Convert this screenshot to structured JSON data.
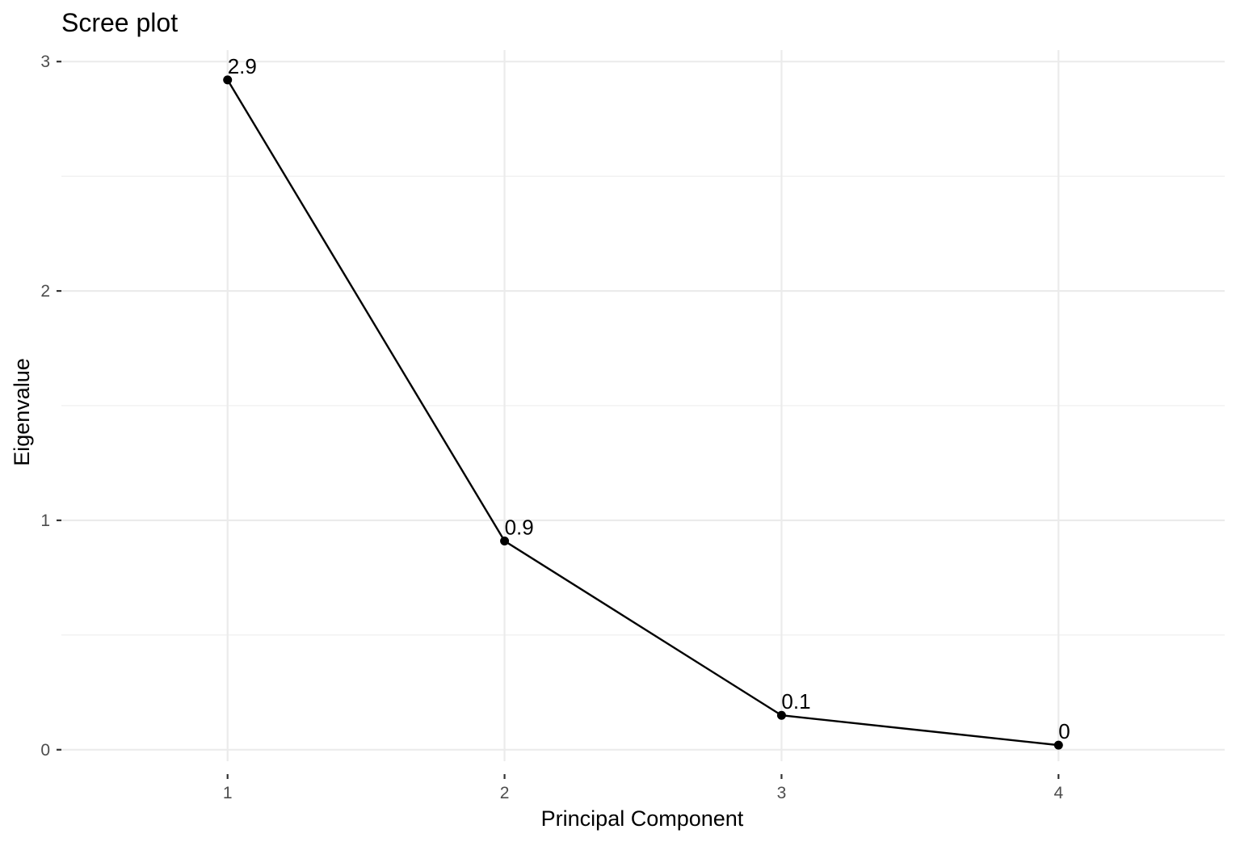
{
  "chart_data": {
    "type": "line",
    "title": "Scree plot",
    "xlabel": "Principal Component",
    "ylabel": "Eigenvalue",
    "x": [
      1,
      2,
      3,
      4
    ],
    "x_tick_labels": [
      "1",
      "2",
      "3",
      "4"
    ],
    "xlim": [
      0.4,
      4.6
    ],
    "ylim": [
      -0.05,
      3.05
    ],
    "y_ticks": [
      0,
      1,
      2,
      3
    ],
    "y_tick_labels": [
      "0",
      "1",
      "2",
      "3"
    ],
    "y_minor_ticks": [
      0.5,
      1.5,
      2.5
    ],
    "series": [
      {
        "values": [
          2.92,
          0.91,
          0.15,
          0.02
        ],
        "data_labels": [
          "2.9",
          "0.9",
          "0.1",
          "0"
        ],
        "color": "#000000"
      }
    ],
    "grid": true,
    "legend": "none"
  }
}
